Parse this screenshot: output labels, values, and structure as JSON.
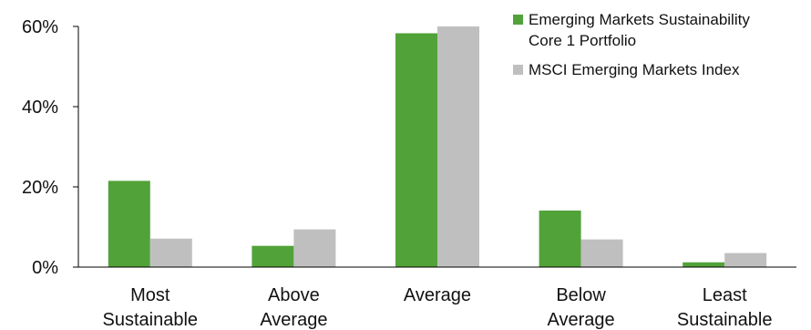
{
  "chart_data": {
    "type": "bar",
    "categories": [
      [
        "Most",
        "Sustainable"
      ],
      [
        "Above",
        "Average"
      ],
      [
        "Average"
      ],
      [
        "Below",
        "Average"
      ],
      [
        "Least",
        "Sustainable"
      ]
    ],
    "series": [
      {
        "name_lines": [
          "Emerging Markets Sustainability",
          "Core 1 Portfolio"
        ],
        "color": "#52a23a",
        "values": [
          21.5,
          5.3,
          58.3,
          14.1,
          1.2
        ]
      },
      {
        "name_lines": [
          "MSCI Emerging Markets Index"
        ],
        "color": "#bfbfbf",
        "values": [
          7.1,
          9.4,
          60.0,
          6.9,
          3.5
        ]
      }
    ],
    "y_ticks": [
      0,
      20,
      40,
      60
    ],
    "y_tick_labels": [
      "0%",
      "20%",
      "40%",
      "60%"
    ],
    "ylim": [
      0,
      60
    ],
    "grid": false,
    "legend_position": "top-right",
    "axis_color": "#000000"
  }
}
